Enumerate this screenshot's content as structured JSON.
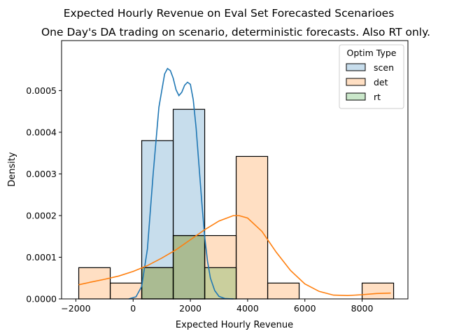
{
  "chart_data": {
    "type": "histogram",
    "title": "Expected Hourly Revenue on Eval Set Forecasted Scenarioes",
    "subtitle": "One Day's DA trading on scenario, deterministic forecasts.  Also RT only.",
    "xlabel": "Expected Hourly Revenue",
    "ylabel": "Density",
    "xlim": [
      -2500,
      9600
    ],
    "ylim": [
      0,
      0.00062
    ],
    "xticks": [
      -2000,
      0,
      2000,
      4000,
      6000,
      8000
    ],
    "xtick_labels": [
      "−2000",
      "0",
      "2000",
      "4000",
      "6000",
      "8000"
    ],
    "yticks": [
      0,
      0.0001,
      0.0002,
      0.0003,
      0.0004,
      0.0005
    ],
    "ytick_labels": [
      "0.0000",
      "0.0001",
      "0.0002",
      "0.0003",
      "0.0004",
      "0.0005"
    ],
    "grid": false,
    "legend": {
      "title": "Optim Type",
      "position": "top-right"
    },
    "series": [
      {
        "name": "scen",
        "color": "#1f77b4",
        "bins": [
          [
            300,
            1400
          ],
          [
            1400,
            2500
          ]
        ],
        "density": [
          0.00038,
          0.000455
        ]
      },
      {
        "name": "det",
        "color": "#ff7f0e",
        "bins": [
          [
            -1900,
            -800
          ],
          [
            -800,
            300
          ],
          [
            300,
            1400
          ],
          [
            1400,
            2500
          ],
          [
            2500,
            3600
          ],
          [
            3600,
            4700
          ],
          [
            4700,
            5800
          ],
          [
            5800,
            6900
          ],
          [
            6900,
            8000
          ],
          [
            8000,
            9100
          ]
        ],
        "density": [
          7.5e-05,
          3.8e-05,
          7.5e-05,
          0.000152,
          0.000152,
          0.000342,
          3.8e-05,
          0,
          0,
          3.8e-05
        ]
      },
      {
        "name": "rt",
        "color": "#2ca02c",
        "bins": [
          [
            300,
            1400
          ],
          [
            1400,
            2500
          ],
          [
            2500,
            3600
          ]
        ],
        "density": [
          7.5e-05,
          0.000152,
          7.5e-05
        ]
      }
    ],
    "kde": [
      {
        "series": "scen",
        "color": "#1f77b4",
        "x": [
          -150,
          100,
          300,
          500,
          700,
          900,
          1100,
          1200,
          1300,
          1400,
          1500,
          1600,
          1700,
          1800,
          1900,
          2000,
          2100,
          2200,
          2300,
          2400,
          2500,
          2600,
          2700,
          2850,
          3000,
          3200,
          3500
        ],
        "y": [
          0,
          5e-06,
          3e-05,
          0.00012,
          0.0003,
          0.00046,
          0.00054,
          0.000553,
          0.000548,
          0.00053,
          0.000502,
          0.000488,
          0.000496,
          0.000513,
          0.00052,
          0.000515,
          0.000478,
          0.00041,
          0.00032,
          0.00023,
          0.00015,
          9e-05,
          5e-05,
          2e-05,
          6e-06,
          1e-06,
          0
        ]
      },
      {
        "series": "det",
        "color": "#ff7f0e",
        "x": [
          -1900,
          -1500,
          -1000,
          -500,
          0,
          500,
          1000,
          1500,
          2000,
          2500,
          3000,
          3500,
          3700,
          4000,
          4500,
          5000,
          5500,
          6000,
          6500,
          7000,
          7500,
          8000,
          8500,
          9000
        ],
        "y": [
          3.4e-05,
          4e-05,
          4.7e-05,
          5.5e-05,
          6.6e-05,
          8e-05,
          9.8e-05,
          0.000118,
          0.000142,
          0.000166,
          0.000187,
          0.0002,
          0.0002,
          0.000194,
          0.000162,
          0.000112,
          6.8e-05,
          3.6e-05,
          1.8e-05,
          9e-06,
          8e-06,
          1e-05,
          1.3e-05,
          1.4e-05
        ]
      }
    ]
  }
}
